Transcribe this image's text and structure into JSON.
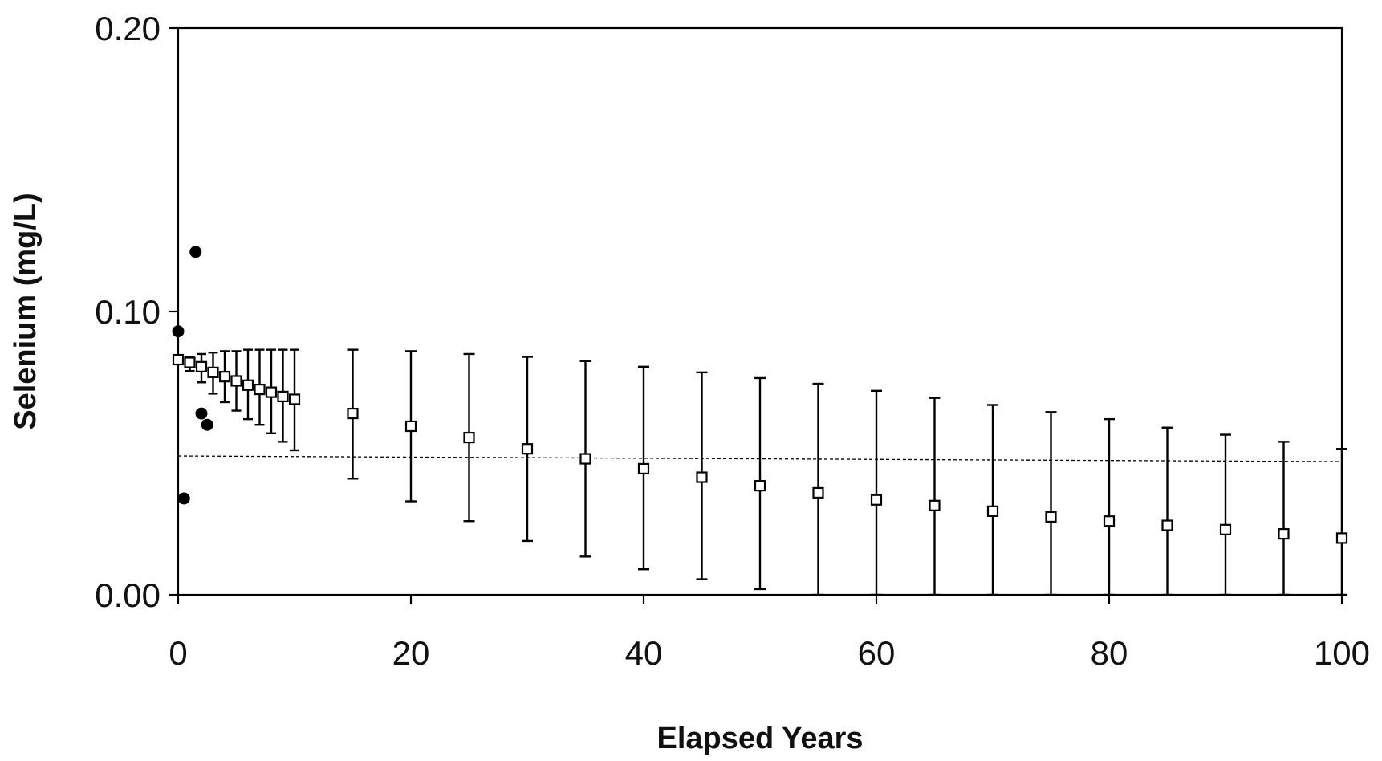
{
  "chart_data": {
    "type": "scatter",
    "title": "",
    "xlabel": "Elapsed Years",
    "ylabel": "Selenium (mg/L)",
    "xlim": [
      0,
      100
    ],
    "ylim": [
      0,
      0.2
    ],
    "x_ticks": [
      "0",
      "20",
      "40",
      "60",
      "80",
      "100"
    ],
    "y_ticks": [
      "0.00",
      "0.10",
      "0.20"
    ],
    "grid": false,
    "legend": "none",
    "reference_line": {
      "y_start": 0.049,
      "y_end": 0.047,
      "style": "dashed"
    },
    "series": [
      {
        "marker": "filled-circle",
        "color": "#000000",
        "points": [
          {
            "x": 0,
            "y": 0.093
          },
          {
            "x": 0.5,
            "y": 0.034
          },
          {
            "x": 1.5,
            "y": 0.121
          },
          {
            "x": 2,
            "y": 0.064
          },
          {
            "x": 2.5,
            "y": 0.06
          }
        ]
      },
      {
        "marker": "open-square",
        "color": "#000000",
        "points": [
          {
            "x": 0,
            "y": 0.083,
            "lo": 0.083,
            "hi": 0.083
          },
          {
            "x": 1,
            "y": 0.082,
            "lo": 0.079,
            "hi": 0.084
          },
          {
            "x": 2,
            "y": 0.0805,
            "lo": 0.075,
            "hi": 0.085
          },
          {
            "x": 3,
            "y": 0.0785,
            "lo": 0.071,
            "hi": 0.0855
          },
          {
            "x": 4,
            "y": 0.077,
            "lo": 0.068,
            "hi": 0.086
          },
          {
            "x": 5,
            "y": 0.0755,
            "lo": 0.065,
            "hi": 0.086
          },
          {
            "x": 6,
            "y": 0.074,
            "lo": 0.062,
            "hi": 0.0865
          },
          {
            "x": 7,
            "y": 0.0725,
            "lo": 0.06,
            "hi": 0.0865
          },
          {
            "x": 8,
            "y": 0.0715,
            "lo": 0.057,
            "hi": 0.0865
          },
          {
            "x": 9,
            "y": 0.07,
            "lo": 0.054,
            "hi": 0.0865
          },
          {
            "x": 10,
            "y": 0.069,
            "lo": 0.051,
            "hi": 0.0865
          },
          {
            "x": 15,
            "y": 0.064,
            "lo": 0.041,
            "hi": 0.0865
          },
          {
            "x": 20,
            "y": 0.0595,
            "lo": 0.033,
            "hi": 0.086
          },
          {
            "x": 25,
            "y": 0.0555,
            "lo": 0.026,
            "hi": 0.085
          },
          {
            "x": 30,
            "y": 0.0515,
            "lo": 0.019,
            "hi": 0.084
          },
          {
            "x": 35,
            "y": 0.048,
            "lo": 0.0135,
            "hi": 0.0825
          },
          {
            "x": 40,
            "y": 0.0445,
            "lo": 0.009,
            "hi": 0.0805
          },
          {
            "x": 45,
            "y": 0.0415,
            "lo": 0.0055,
            "hi": 0.0785
          },
          {
            "x": 50,
            "y": 0.0385,
            "lo": 0.002,
            "hi": 0.0765
          },
          {
            "x": 55,
            "y": 0.036,
            "lo": 0.0,
            "hi": 0.0745
          },
          {
            "x": 60,
            "y": 0.0335,
            "lo": 0.0,
            "hi": 0.072
          },
          {
            "x": 65,
            "y": 0.0315,
            "lo": 0.0,
            "hi": 0.0695
          },
          {
            "x": 70,
            "y": 0.0295,
            "lo": 0.0,
            "hi": 0.067
          },
          {
            "x": 75,
            "y": 0.0275,
            "lo": 0.0,
            "hi": 0.0645
          },
          {
            "x": 80,
            "y": 0.026,
            "lo": 0.0,
            "hi": 0.062
          },
          {
            "x": 85,
            "y": 0.0245,
            "lo": 0.0,
            "hi": 0.059
          },
          {
            "x": 90,
            "y": 0.023,
            "lo": 0.0,
            "hi": 0.0565
          },
          {
            "x": 95,
            "y": 0.0215,
            "lo": 0.0,
            "hi": 0.054
          },
          {
            "x": 100,
            "y": 0.02,
            "lo": 0.0,
            "hi": 0.0515
          }
        ]
      }
    ]
  }
}
